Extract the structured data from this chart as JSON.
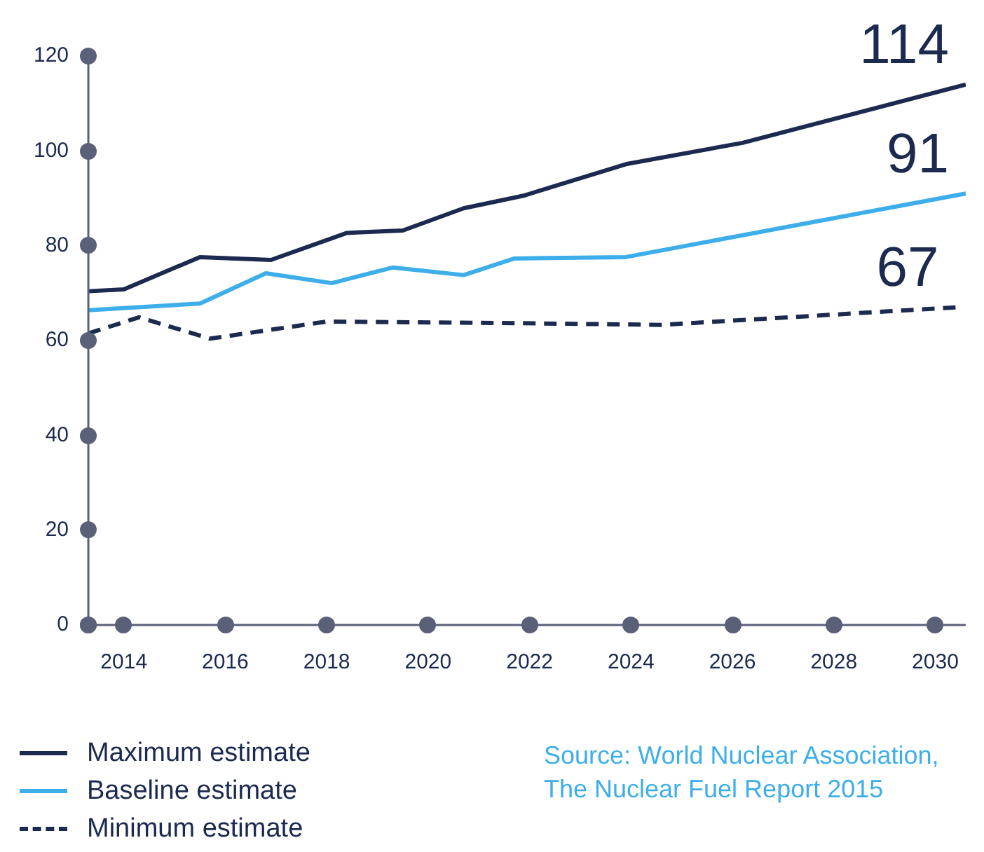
{
  "chart_data": {
    "type": "line",
    "xlim": [
      2013.3,
      2030.6
    ],
    "xticks": [
      2014,
      2016,
      2018,
      2020,
      2022,
      2024,
      2026,
      2028,
      2030
    ],
    "ylim": [
      0,
      120
    ],
    "yticks": [
      0,
      20,
      40,
      60,
      80,
      100,
      120
    ],
    "grid": false,
    "legend": "bottom left",
    "marker": "none",
    "series": [
      {
        "name": "Maximum estimate",
        "color": "#1b2a4e",
        "line_style": "solid",
        "x": [
          2013.3,
          2014.0,
          2015.5,
          2016.9,
          2018.4,
          2019.5,
          2020.7,
          2021.9,
          2023.9,
          2026.2,
          2030.6
        ],
        "values": [
          70.4,
          70.8,
          77.6,
          77.0,
          82.7,
          83.2,
          87.9,
          90.6,
          97.2,
          101.7,
          114
        ],
        "value_labels": [
          null,
          null,
          null,
          null,
          null,
          null,
          null,
          null,
          null,
          null,
          "114"
        ]
      },
      {
        "name": "Baseline estimate",
        "color": "#3daee9",
        "line_style": "solid",
        "x": [
          2013.3,
          2015.5,
          2016.8,
          2018.1,
          2019.3,
          2020.7,
          2021.7,
          2023.9,
          2030.6
        ],
        "values": [
          66.4,
          67.8,
          74.2,
          72.1,
          75.4,
          73.8,
          77.3,
          77.6,
          91
        ],
        "value_labels": [
          null,
          null,
          null,
          null,
          null,
          null,
          null,
          null,
          "91"
        ]
      },
      {
        "name": "Minimum estimate",
        "color": "#1b2a4e",
        "line_style": "dashed",
        "x": [
          2013.3,
          2014.3,
          2015.7,
          2018.0,
          2021.4,
          2024.6,
          2030.4
        ],
        "values": [
          61.5,
          64.9,
          60.4,
          64.0,
          63.7,
          63.3,
          67
        ],
        "value_labels": [
          null,
          null,
          null,
          null,
          null,
          null,
          "67"
        ]
      }
    ],
    "annotations": [
      "Source: World Nuclear Association, The Nuclear Fuel Report 2015"
    ]
  }
}
